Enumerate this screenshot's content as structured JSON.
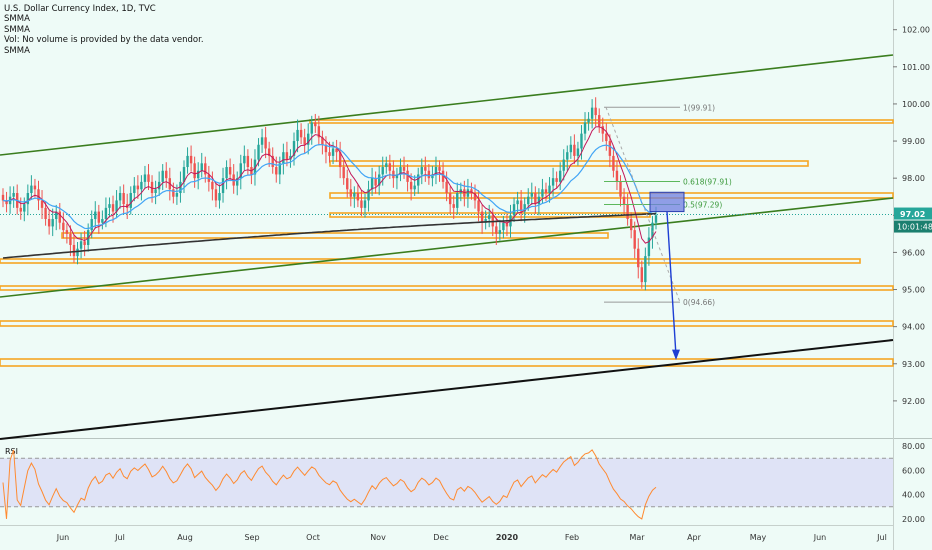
{
  "legend": {
    "title": "U.S. Dollar Currency Index, 1D, TVC",
    "line2": "SMMA",
    "line3": "SMMA",
    "line4": "Vol: No volume is provided by the data vendor.",
    "line5": "SMMA"
  },
  "rsi_label": "RSI",
  "colors": {
    "background": "#eefbf7",
    "up_candle": "#26a69a",
    "down_candle": "#ef5350",
    "channel_green": "#3a7d1e",
    "support_black": "#111111",
    "zone_orange": "#f5a623",
    "smma_fast": "#c2185b",
    "smma_mid": "#42a5f5",
    "smma_slow": "#333333",
    "rsi_line": "#ff8a30",
    "rsi_band": "#d9d9f5",
    "target_box": "#6f7fe0",
    "arrow": "#1e3fd4",
    "price_badge": "#26a69a"
  },
  "chart_data": {
    "type": "candlestick",
    "symbol": "TVC:DXY",
    "timeframe": "1D",
    "y_range": [
      91.0,
      102.8
    ],
    "y_ticks": [
      "102.00",
      "101.00",
      "100.00",
      "99.00",
      "98.00",
      "97.00",
      "96.00",
      "95.00",
      "94.00",
      "93.00",
      "92.00"
    ],
    "x_ticks": [
      "Jun",
      "Jul",
      "Aug",
      "Sep",
      "Oct",
      "Nov",
      "Dec",
      "2020",
      "Feb",
      "Mar",
      "Apr",
      "May",
      "Jun",
      "Jul"
    ],
    "last_price": "97.02",
    "countdown": "10:01:48",
    "closes": [
      97.4,
      97.3,
      97.5,
      97.6,
      97.2,
      97.1,
      97.3,
      97.6,
      97.8,
      97.7,
      97.4,
      97.2,
      96.9,
      96.7,
      96.9,
      97.1,
      96.8,
      96.6,
      96.5,
      96.2,
      95.9,
      96.1,
      96.3,
      96.2,
      96.6,
      96.9,
      97.1,
      96.8,
      96.9,
      97.2,
      97.3,
      97.1,
      97.4,
      97.6,
      97.3,
      97.2,
      97.6,
      97.8,
      97.7,
      97.9,
      98.1,
      97.9,
      97.6,
      97.7,
      97.9,
      98.2,
      98.0,
      97.7,
      97.5,
      97.6,
      97.9,
      98.3,
      98.6,
      98.4,
      98.0,
      98.2,
      98.4,
      98.1,
      97.9,
      97.7,
      97.4,
      97.6,
      98.0,
      98.3,
      98.1,
      97.8,
      98.0,
      98.4,
      98.6,
      98.3,
      98.1,
      98.5,
      98.9,
      99.1,
      98.8,
      98.6,
      98.3,
      98.1,
      98.4,
      98.7,
      98.5,
      98.6,
      99.0,
      99.3,
      99.1,
      98.9,
      99.2,
      99.5,
      99.4,
      99.1,
      98.9,
      98.7,
      98.6,
      98.8,
      98.7,
      98.3,
      98.0,
      97.7,
      97.5,
      97.6,
      97.4,
      97.2,
      97.4,
      97.7,
      98.0,
      97.8,
      98.1,
      98.3,
      98.4,
      98.2,
      98.0,
      98.1,
      98.3,
      98.2,
      97.9,
      97.7,
      97.8,
      98.1,
      98.3,
      98.2,
      98.0,
      98.1,
      98.3,
      98.2,
      97.9,
      97.6,
      97.3,
      97.2,
      97.6,
      97.7,
      97.5,
      97.7,
      97.6,
      97.4,
      97.1,
      96.8,
      96.9,
      97.0,
      96.7,
      96.5,
      96.6,
      96.8,
      96.7,
      97.0,
      97.3,
      97.4,
      97.1,
      97.3,
      97.5,
      97.6,
      97.3,
      97.5,
      97.7,
      97.6,
      97.8,
      98.0,
      97.9,
      98.2,
      98.5,
      98.7,
      98.9,
      98.6,
      98.8,
      99.2,
      99.5,
      99.6,
      99.9,
      99.7,
      99.4,
      99.2,
      99.0,
      98.6,
      98.2,
      97.9,
      97.5,
      97.3,
      96.9,
      96.6,
      96.1,
      95.6,
      95.2,
      95.9,
      96.4,
      96.8,
      97.0
    ]
  }
}
